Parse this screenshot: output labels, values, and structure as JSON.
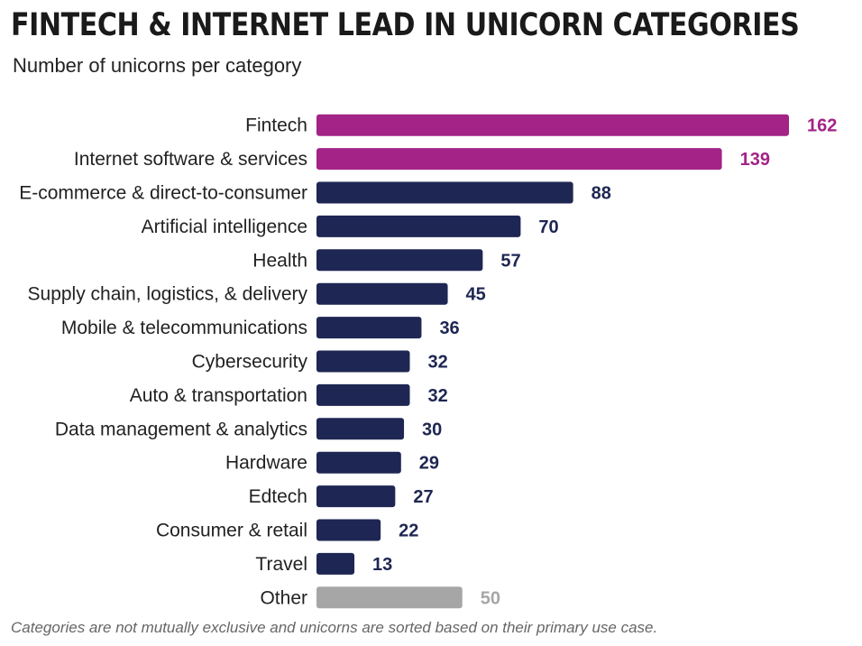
{
  "chart_data": {
    "type": "bar",
    "orientation": "horizontal",
    "title": "FINTECH & INTERNET LEAD IN UNICORN CATEGORIES",
    "subtitle": "Number of unicorns per category",
    "footnote": "Categories are not mutually exclusive and unicorns are sorted based on their primary use case.",
    "categories": [
      "Fintech",
      "Internet software & services",
      "E-commerce & direct-to-consumer",
      "Artificial intelligence",
      "Health",
      "Supply chain, logistics, & delivery",
      "Mobile & telecommunications",
      "Cybersecurity",
      "Auto & transportation",
      "Data management & analytics",
      "Hardware",
      "Edtech",
      "Consumer & retail",
      "Travel",
      "Other"
    ],
    "values": [
      162,
      139,
      88,
      70,
      57,
      45,
      36,
      32,
      32,
      30,
      29,
      27,
      22,
      13,
      50
    ],
    "bar_colors": [
      "#a32386",
      "#a32386",
      "#1e2653",
      "#1e2653",
      "#1e2653",
      "#1e2653",
      "#1e2653",
      "#1e2653",
      "#1e2653",
      "#1e2653",
      "#1e2653",
      "#1e2653",
      "#1e2653",
      "#1e2653",
      "#a6a6a6"
    ],
    "label_colors": [
      "#a32386",
      "#a32386",
      "#1e2653",
      "#1e2653",
      "#1e2653",
      "#1e2653",
      "#1e2653",
      "#1e2653",
      "#1e2653",
      "#1e2653",
      "#1e2653",
      "#1e2653",
      "#1e2653",
      "#1e2653",
      "#a6a6a6"
    ],
    "xlim": [
      0,
      162
    ],
    "grid": false,
    "legend": "none"
  }
}
